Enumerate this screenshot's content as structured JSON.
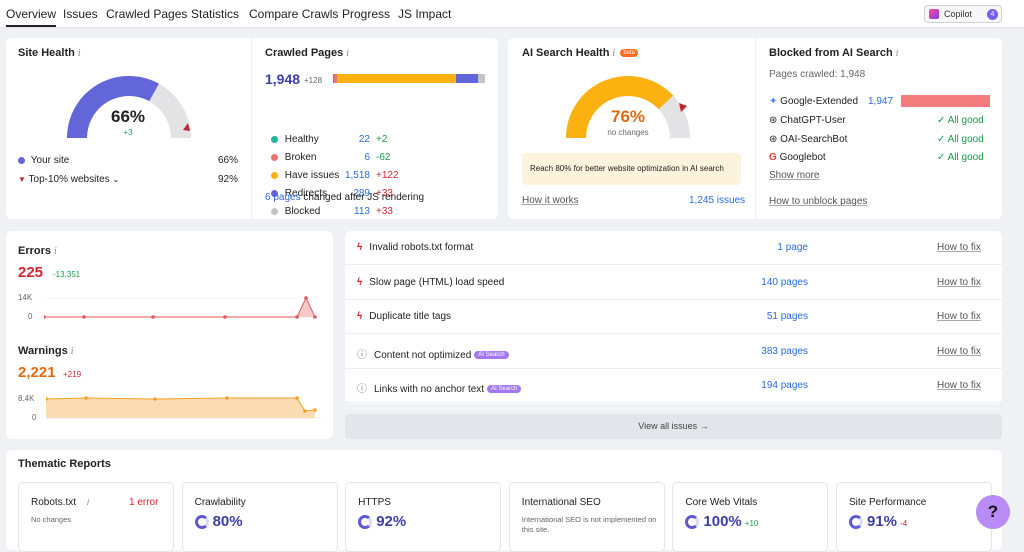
{
  "tabs": [
    "Overview",
    "Issues",
    "Crawled Pages",
    "Statistics",
    "Compare Crawls",
    "Progress",
    "JS Impact"
  ],
  "copilot": {
    "label": "Copilot",
    "badge": "4"
  },
  "site_health": {
    "title": "Site Health",
    "score": "66%",
    "delta": "+3",
    "score_fraction": 0.66,
    "your_site_label": "Your site",
    "your_site_value": "66%",
    "top10_label": "Top-10% websites",
    "top10_value": "92%"
  },
  "crawled_pages": {
    "title": "Crawled Pages",
    "total": "1,948",
    "total_delta": "+128",
    "rows": [
      {
        "label": "Healthy",
        "value": "22",
        "delta": "+2",
        "color": "#1fb59b"
      },
      {
        "label": "Broken",
        "value": "6",
        "delta": "-62",
        "color": "#f0716f"
      },
      {
        "label": "Have issues",
        "value": "1,518",
        "delta": "+122",
        "color": "#fbb10f"
      },
      {
        "label": "Redirects",
        "value": "289",
        "delta": "+33",
        "color": "#6266d8"
      },
      {
        "label": "Blocked",
        "value": "113",
        "delta": "+33",
        "color": "#c4c4c4"
      }
    ],
    "js_link": "6 pages",
    "js_text": "changed after JS rendering"
  },
  "ai_health": {
    "title": "AI Search Health",
    "beta": "beta",
    "score": "76%",
    "sub": "no changes",
    "score_fraction": 0.76,
    "note": "Reach 80% for better website optimization in AI search",
    "how_link": "How it works",
    "issues_link": "1,245 issues"
  },
  "blocked_ai": {
    "title": "Blocked from AI Search",
    "pages_crawled": "Pages crawled: 1,948",
    "rows": [
      {
        "name": "Google-Extended",
        "value": "1,947",
        "status": ""
      },
      {
        "name": "ChatGPT-User",
        "value": "",
        "status": "All good"
      },
      {
        "name": "OAI-SearchBot",
        "value": "",
        "status": "All good"
      },
      {
        "name": "Googlebot",
        "value": "",
        "status": "All good"
      }
    ],
    "show_more": "Show more",
    "unblock_link": "How to unblock pages"
  },
  "errors": {
    "title": "Errors",
    "value": "225",
    "delta": "-13,351",
    "ymax": "14K",
    "ymin": "0"
  },
  "warnings": {
    "title": "Warnings",
    "value": "2,221",
    "delta": "+219",
    "ymax": "8.4K",
    "ymin": "0"
  },
  "issues": [
    {
      "text": "Invalid robots.txt format",
      "pages": "1 page",
      "fix": "How to fix",
      "type": "error",
      "tag": ""
    },
    {
      "text": "Slow page (HTML) load speed",
      "pages": "140 pages",
      "fix": "How to fix",
      "type": "error",
      "tag": ""
    },
    {
      "text": "Duplicate title tags",
      "pages": "51 pages",
      "fix": "How to fix",
      "type": "error",
      "tag": ""
    },
    {
      "text": "Content not optimized",
      "pages": "383 pages",
      "fix": "How to fix",
      "type": "notice",
      "tag": "AI Search"
    },
    {
      "text": "Links with no anchor text",
      "pages": "194 pages",
      "fix": "How to fix",
      "type": "notice",
      "tag": "AI Search"
    }
  ],
  "view_all": "View all issues",
  "thematic": {
    "title": "Thematic Reports",
    "cards": [
      {
        "name": "Robots.txt",
        "value": "",
        "delta": "",
        "extra": "1 error",
        "note": "No changes"
      },
      {
        "name": "Crawlability",
        "value": "80%",
        "delta": "",
        "extra": "",
        "note": ""
      },
      {
        "name": "HTTPS",
        "value": "92%",
        "delta": "",
        "extra": "",
        "note": ""
      },
      {
        "name": "International SEO",
        "value": "",
        "delta": "",
        "extra": "",
        "note": "International SEO is not implemented on this site."
      },
      {
        "name": "Core Web Vitals",
        "value": "100%",
        "delta": "+10",
        "extra": "",
        "note": ""
      },
      {
        "name": "Site Performance",
        "value": "91%",
        "delta": "-4",
        "extra": "",
        "note": ""
      }
    ]
  },
  "help": "?"
}
